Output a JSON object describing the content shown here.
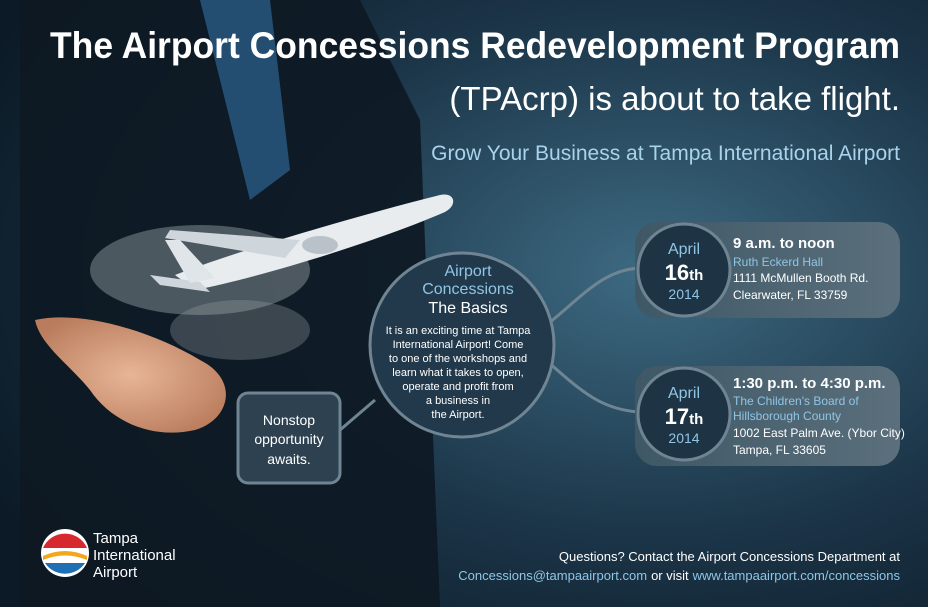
{
  "header": {
    "title": "The Airport Concessions Redevelopment Program",
    "subtitle": "(TPAcrp) is about to take flight.",
    "tagline": "Grow Your Business at Tampa International Airport"
  },
  "basics": {
    "heading_1": "Airport",
    "heading_2": "Concessions",
    "heading_3": "The Basics",
    "body_lines": [
      "It is an exciting time at Tampa",
      "International Airport! Come",
      "to one of the workshops and",
      "learn what it takes to open,",
      "operate and profit from",
      "a business in",
      "the Airport."
    ]
  },
  "callout": {
    "lines": [
      "Nonstop",
      "opportunity",
      "awaits."
    ]
  },
  "events": [
    {
      "month": "April",
      "day": "16",
      "suffix": "th",
      "year": "2014",
      "time": "9 a.m. to noon",
      "venue": [
        "Ruth Eckerd Hall"
      ],
      "address": [
        "1111 McMullen Booth Rd.",
        "Clearwater, FL 33759"
      ]
    },
    {
      "month": "April",
      "day": "17",
      "suffix": "th",
      "year": "2014",
      "time": "1:30 p.m. to 4:30 p.m.",
      "venue": [
        "The Children's Board of",
        "Hillsborough County"
      ],
      "address": [
        "1002 East Palm Ave. (Ybor City)",
        "Tampa, FL 33605"
      ]
    }
  ],
  "footer": {
    "question": "Questions? Contact the Airport Concessions Department at",
    "email": "Concessions@tampaairport.com",
    "connector": "or visit",
    "url": "www.tampaairport.com/concessions"
  },
  "logo": {
    "lines": [
      "Tampa",
      "International",
      "Airport"
    ]
  }
}
